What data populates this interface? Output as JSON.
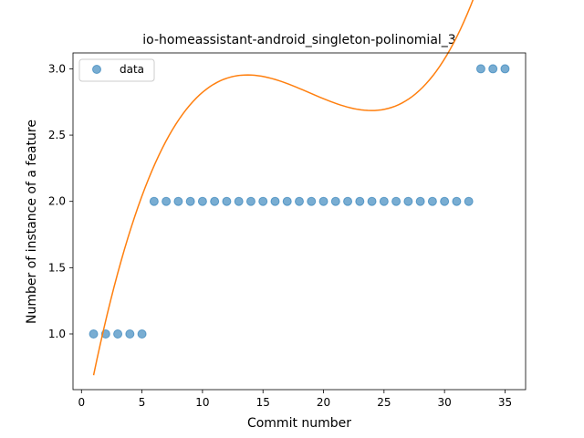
{
  "chart_data": {
    "type": "scatter",
    "title": "io-homeassistant-android_singleton-polinomial_3",
    "xlabel": "Commit number",
    "ylabel": "Number of instance of a feature",
    "xlim": [
      -0.7,
      36.7
    ],
    "ylim": [
      0.58,
      3.12
    ],
    "xticks": [
      0,
      5,
      10,
      15,
      20,
      25,
      30,
      35
    ],
    "yticks": [
      1.0,
      1.5,
      2.0,
      2.5,
      3.0
    ],
    "xtick_labels": [
      "0",
      "5",
      "10",
      "15",
      "20",
      "25",
      "30",
      "35"
    ],
    "ytick_labels": [
      "1.0",
      "1.5",
      "2.0",
      "2.5",
      "3.0"
    ],
    "legend": {
      "position": "upper-left",
      "label": "data"
    },
    "grid": false,
    "series": [
      {
        "name": "data",
        "kind": "scatter",
        "color": "#1f77b4",
        "x": [
          1,
          2,
          3,
          4,
          5,
          6,
          7,
          8,
          9,
          10,
          11,
          12,
          13,
          14,
          15,
          16,
          17,
          18,
          19,
          20,
          21,
          22,
          23,
          24,
          25,
          26,
          27,
          28,
          29,
          30,
          31,
          32,
          33,
          34,
          35
        ],
        "y": [
          1,
          1,
          1,
          1,
          1,
          2,
          2,
          2,
          2,
          2,
          2,
          2,
          2,
          2,
          2,
          2,
          2,
          2,
          2,
          2,
          2,
          2,
          2,
          2,
          2,
          2,
          2,
          2,
          2,
          2,
          2,
          2,
          3,
          3,
          3
        ]
      },
      {
        "kind": "line",
        "color": "#ff7f0e",
        "polynomial_coefficients": [
          0.000499,
          -0.0282,
          0.4919,
          0.2247
        ],
        "x_range": [
          1,
          35
        ]
      }
    ]
  }
}
